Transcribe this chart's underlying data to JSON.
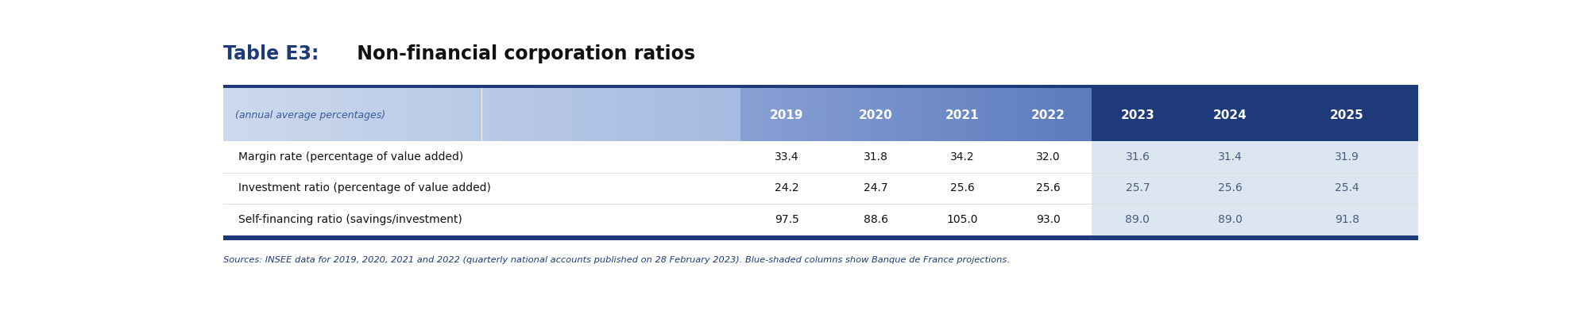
{
  "title_bold": "Table E3:",
  "title_normal": " Non-financial corporation ratios",
  "header_label": "(annual average percentages)",
  "years": [
    "2019",
    "2020",
    "2021",
    "2022",
    "2023",
    "2024",
    "2025"
  ],
  "rows": [
    {
      "label": "Margin rate (percentage of value added)",
      "values": [
        "33.4",
        "31.8",
        "34.2",
        "32.0",
        "31.6",
        "31.4",
        "31.9"
      ]
    },
    {
      "label": "Investment ratio (percentage of value added)",
      "values": [
        "24.2",
        "24.7",
        "25.6",
        "25.6",
        "25.7",
        "25.6",
        "25.4"
      ]
    },
    {
      "label": "Self-financing ratio (savings/investment)",
      "values": [
        "97.5",
        "88.6",
        "105.0",
        "93.0",
        "89.0",
        "89.0",
        "91.8"
      ]
    }
  ],
  "source_text": "Sources: INSEE data for 2019, 2020, 2021 and 2022 (quarterly national accounts published on 28 February 2023). Blue-shaded columns show Banque de France projections.",
  "projection_col_bg": "#dce6f0",
  "title_blue": "#1e3a7a",
  "source_blue": "#1e3a7a",
  "n_historical": 4,
  "n_projection": 3
}
